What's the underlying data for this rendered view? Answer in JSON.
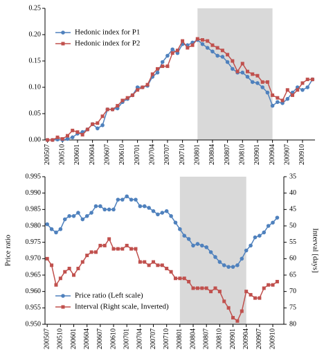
{
  "chart_data": [
    {
      "type": "line",
      "categories": [
        "200507",
        null,
        null,
        "200510",
        null,
        null,
        "200601",
        null,
        null,
        "200604",
        null,
        null,
        "200607",
        null,
        null,
        "200610",
        null,
        null,
        "200701",
        null,
        null,
        "200704",
        null,
        null,
        "200707",
        null,
        null,
        "200710",
        null,
        null,
        "200801",
        null,
        null,
        "200804",
        null,
        null,
        "200807",
        null,
        null,
        "200810",
        null,
        null,
        "200901",
        null,
        null,
        "200904",
        null,
        null,
        "200907",
        null,
        null,
        "200910",
        null,
        null
      ],
      "series": [
        {
          "name": "Hedonic index for P1",
          "color": "#4f81bd",
          "marker": "circle",
          "values": [
            0.0,
            0.0,
            0.001,
            0.0,
            0.002,
            0.005,
            0.012,
            0.015,
            0.02,
            0.03,
            0.022,
            0.028,
            0.058,
            0.058,
            0.06,
            0.072,
            0.078,
            0.085,
            0.1,
            0.1,
            0.103,
            0.12,
            0.128,
            0.148,
            0.16,
            0.172,
            0.165,
            0.182,
            0.18,
            0.185,
            0.19,
            0.182,
            0.175,
            0.168,
            0.16,
            0.158,
            0.148,
            0.135,
            0.128,
            0.128,
            0.12,
            0.11,
            0.108,
            0.1,
            0.09,
            0.065,
            0.072,
            0.07,
            0.078,
            0.09,
            0.1,
            0.095,
            0.1,
            0.115
          ]
        },
        {
          "name": "Hedonic index for P2",
          "color": "#c0504d",
          "marker": "square",
          "values": [
            0.0,
            0.0,
            0.005,
            0.002,
            0.008,
            0.018,
            0.015,
            0.01,
            0.02,
            0.03,
            0.032,
            0.045,
            0.058,
            0.058,
            0.065,
            0.075,
            0.08,
            0.085,
            0.095,
            0.1,
            0.105,
            0.125,
            0.135,
            0.14,
            0.14,
            0.165,
            0.17,
            0.188,
            0.175,
            0.18,
            0.192,
            0.19,
            0.188,
            0.18,
            0.175,
            0.17,
            0.162,
            0.15,
            0.13,
            0.145,
            0.13,
            0.125,
            0.122,
            0.11,
            0.11,
            0.085,
            0.08,
            0.075,
            0.095,
            0.085,
            0.095,
            0.108,
            0.115,
            0.115
          ]
        }
      ],
      "ylim": [
        0,
        0.25
      ],
      "yticks": [
        {
          "value": 0,
          "label": "0.00"
        },
        {
          "value": 0.05,
          "label": "0.05"
        },
        {
          "value": 0.1,
          "label": "0.10"
        },
        {
          "value": 0.15,
          "label": "0.15"
        },
        {
          "value": 0.2,
          "label": "0.20"
        },
        {
          "value": 0.25,
          "label": "0.25"
        }
      ],
      "shaded_range": [
        "200801",
        "200904"
      ],
      "legend": "upper left",
      "grid": false
    },
    {
      "type": "line",
      "categories": [
        "200507",
        null,
        null,
        "200510",
        null,
        null,
        "200601",
        null,
        null,
        "200604",
        null,
        null,
        "200607",
        null,
        null,
        "200610",
        null,
        null,
        "200701",
        null,
        null,
        "200704",
        null,
        null,
        "200707",
        null,
        null,
        "200710",
        null,
        null,
        "200801",
        null,
        null,
        "200804",
        null,
        null,
        "200807",
        null,
        null,
        "200810",
        null,
        null,
        "200901",
        null,
        null,
        "200904",
        null,
        null,
        "200907",
        null,
        null,
        "200910",
        null,
        null
      ],
      "y_label": "Price ratio",
      "y2_label": "Interval [days]",
      "series": [
        {
          "name": "Price ratio (Left scale)",
          "color": "#4f81bd",
          "marker": "circle",
          "values": [
            0.9805,
            0.979,
            0.978,
            0.979,
            0.982,
            0.983,
            0.983,
            0.984,
            0.982,
            0.983,
            0.984,
            0.986,
            0.986,
            0.985,
            0.985,
            0.985,
            0.988,
            0.988,
            0.989,
            0.988,
            0.988,
            0.986,
            0.986,
            0.9855,
            0.9845,
            0.9835,
            0.984,
            0.9845,
            0.983,
            0.981,
            0.979,
            0.977,
            0.976,
            0.974,
            0.9745,
            0.974,
            0.9735,
            0.972,
            0.9705,
            0.969,
            0.968,
            0.9675,
            0.9675,
            0.968,
            0.97,
            0.9725,
            0.974,
            0.9765,
            0.977,
            0.978,
            0.98,
            0.981,
            0.9825,
            null
          ]
        },
        {
          "name": "Interval (Right scale, Inverted)",
          "color": "#c0504d",
          "marker": "square",
          "axis": "y2",
          "values": [
            60,
            62,
            68,
            66,
            64,
            63,
            65,
            63,
            61,
            59,
            58,
            58,
            56,
            56,
            54,
            57,
            57,
            57,
            56,
            57,
            57,
            61,
            61,
            62,
            61,
            62,
            62,
            63,
            64,
            66,
            66,
            66,
            67,
            69,
            69,
            69,
            69,
            70,
            69,
            70,
            73,
            75,
            78,
            79,
            76,
            70,
            71,
            72,
            72,
            69,
            68,
            68,
            67,
            null
          ]
        }
      ],
      "ylim": [
        0.95,
        0.995
      ],
      "yticks": [
        {
          "value": 0.95,
          "label": "0.950"
        },
        {
          "value": 0.955,
          "label": "0.955"
        },
        {
          "value": 0.96,
          "label": "0.960"
        },
        {
          "value": 0.965,
          "label": "0.965"
        },
        {
          "value": 0.97,
          "label": "0.970"
        },
        {
          "value": 0.975,
          "label": "0.975"
        },
        {
          "value": 0.98,
          "label": "0.980"
        },
        {
          "value": 0.985,
          "label": "0.985"
        },
        {
          "value": 0.99,
          "label": "0.990"
        },
        {
          "value": 0.995,
          "label": "0.995"
        }
      ],
      "y2lim": [
        35,
        80
      ],
      "y2_inverted": true,
      "y2ticks": [
        35,
        40,
        45,
        50,
        55,
        60,
        65,
        70,
        75,
        80
      ],
      "shaded_range": [
        "200801",
        "200904"
      ],
      "legend": "lower left",
      "grid": false
    }
  ]
}
